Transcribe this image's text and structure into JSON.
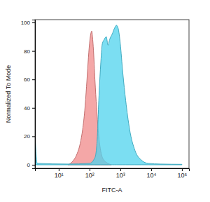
{
  "chart_data": {
    "type": "area",
    "log": "x",
    "grid": false,
    "x_label": "FITC-A",
    "y_label": "Normalized To Mode",
    "xlim": [
      1.7,
      170000
    ],
    "ylim": [
      -2.5,
      102
    ],
    "xticks": [
      {
        "value": 10,
        "label": "10¹"
      },
      {
        "value": 100,
        "label": "10²"
      },
      {
        "value": 1000,
        "label": "10³"
      },
      {
        "value": 10000,
        "label": "10⁴"
      },
      {
        "value": 100000,
        "label": "10⁵"
      }
    ],
    "yticks": [
      0,
      20,
      40,
      60,
      80,
      100
    ],
    "series": [
      {
        "color": "#f08a8a",
        "x": [
          20,
          30,
          40,
          50,
          60,
          70,
          80,
          90,
          100,
          110,
          118,
          125,
          135,
          150,
          170,
          200,
          240,
          300,
          400,
          500
        ],
        "values": [
          0,
          3,
          8,
          15,
          25,
          38,
          55,
          72,
          85,
          92,
          94,
          90,
          80,
          60,
          40,
          20,
          8,
          3,
          1,
          0
        ]
      },
      {
        "color": "#4fd3ee",
        "x": [
          1.7,
          2,
          20,
          100,
          150,
          180,
          200,
          230,
          260,
          300,
          350,
          400,
          450,
          550,
          650,
          750,
          850,
          1000,
          1200,
          1500,
          2000,
          3000,
          5000,
          8000,
          20000,
          100000
        ],
        "values": [
          22,
          1,
          0.5,
          1,
          5,
          20,
          45,
          70,
          85,
          88,
          90,
          84,
          88,
          92,
          96,
          98,
          96,
          85,
          65,
          45,
          25,
          10,
          3,
          1,
          0.5,
          0.3
        ]
      }
    ]
  }
}
